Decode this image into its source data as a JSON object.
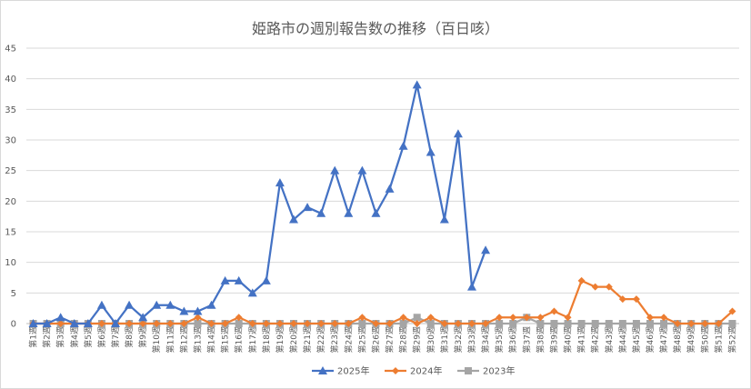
{
  "chart_data": {
    "type": "line",
    "title": "姫路市の週別報告数の推移（百日咳）",
    "xlabel": "",
    "ylabel": "",
    "ylim": [
      0,
      45
    ],
    "y_ticks": [
      0,
      5,
      10,
      15,
      20,
      25,
      30,
      35,
      40,
      45
    ],
    "grid": "horizontal",
    "legend_position": "bottom",
    "categories": [
      "第1週",
      "第2週",
      "第3週",
      "第4週",
      "第5週",
      "第6週",
      "第7週",
      "第8週",
      "第9週",
      "第10週",
      "第11週",
      "第12週",
      "第13週",
      "第14週",
      "第15週",
      "第16週",
      "第17週",
      "第18週",
      "第19週",
      "第20週",
      "第21週",
      "第22週",
      "第23週",
      "第24週",
      "第25週",
      "第26週",
      "第27週",
      "第28週",
      "第29週",
      "第30週",
      "第31週",
      "第32週",
      "第33週",
      "第34週",
      "第35週",
      "第36週",
      "第37週",
      "第38週",
      "第39週",
      "第40週",
      "第41週",
      "第42週",
      "第43週",
      "第44週",
      "第45週",
      "第46週",
      "第47週",
      "第48週",
      "第49週",
      "第50週",
      "第51週",
      "第52週"
    ],
    "series": [
      {
        "name": "2025年",
        "color": "#4472c4",
        "marker": "triangle",
        "values": [
          0,
          0,
          1,
          0,
          0,
          3,
          0,
          3,
          1,
          3,
          3,
          2,
          2,
          3,
          7,
          7,
          5,
          7,
          23,
          17,
          19,
          18,
          25,
          18,
          25,
          18,
          22,
          29,
          39,
          28,
          17,
          31,
          6,
          12,
          null,
          null,
          null,
          null,
          null,
          null,
          null,
          null,
          null,
          null,
          null,
          null,
          null,
          null,
          null,
          null,
          null,
          null
        ]
      },
      {
        "name": "2024年",
        "color": "#ed7d31",
        "marker": "diamond",
        "values": [
          0,
          0,
          0,
          0,
          0,
          0,
          0,
          0,
          0,
          0,
          0,
          0,
          1,
          0,
          0,
          1,
          0,
          0,
          0,
          0,
          0,
          0,
          0,
          0,
          1,
          0,
          0,
          1,
          0,
          1,
          0,
          0,
          0,
          0,
          1,
          1,
          1,
          1,
          2,
          1,
          7,
          6,
          6,
          4,
          4,
          1,
          1,
          0,
          0,
          0,
          0,
          2
        ]
      },
      {
        "name": "2023年",
        "color": "#a5a5a5",
        "marker": "square",
        "values": [
          0,
          0,
          0,
          0,
          0,
          0,
          0,
          0,
          0,
          0,
          0,
          0,
          0,
          0,
          0,
          0,
          0,
          0,
          0,
          0,
          0,
          0,
          0,
          0,
          0,
          0,
          0,
          0,
          1,
          0,
          0,
          0,
          0,
          0,
          0,
          0,
          1,
          0,
          0,
          0,
          0,
          0,
          0,
          0,
          0,
          0,
          0,
          0,
          0,
          0,
          0,
          0
        ]
      }
    ]
  }
}
